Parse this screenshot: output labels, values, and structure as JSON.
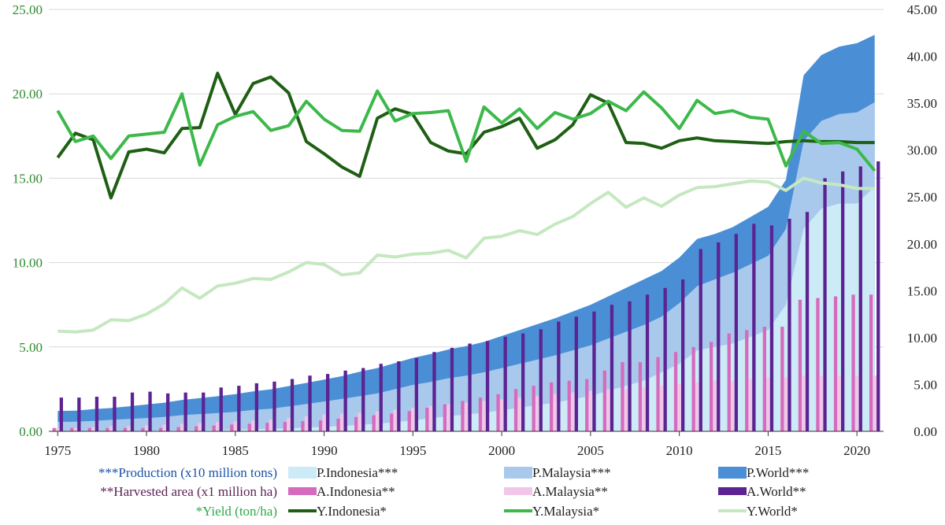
{
  "chart_data": {
    "type": "combo",
    "x": [
      1975,
      1976,
      1977,
      1978,
      1979,
      1980,
      1981,
      1982,
      1983,
      1984,
      1985,
      1986,
      1987,
      1988,
      1989,
      1990,
      1991,
      1992,
      1993,
      1994,
      1995,
      1996,
      1997,
      1998,
      1999,
      2000,
      2001,
      2002,
      2003,
      2004,
      2005,
      2006,
      2007,
      2008,
      2009,
      2010,
      2011,
      2012,
      2013,
      2014,
      2015,
      2016,
      2017,
      2018,
      2019,
      2020,
      2021
    ],
    "x_ticks": [
      "1975",
      "1980",
      "1985",
      "1990",
      "1995",
      "2000",
      "2005",
      "2010",
      "2015",
      "2020"
    ],
    "y_left_ticks": [
      "0.00",
      "5.00",
      "10.00",
      "15.00",
      "20.00",
      "25.00"
    ],
    "y_right_ticks": [
      "0.00",
      "5.00",
      "10.00",
      "15.00",
      "20.00",
      "25.00",
      "30.00",
      "35.00",
      "40.00",
      "45.00"
    ],
    "y_left_range": [
      0,
      25
    ],
    "y_right_range": [
      0,
      45
    ],
    "grid": "horizontal",
    "legend_position": "bottom",
    "area_series": [
      {
        "name": "P.Indonesia***",
        "color": "#cdeaf7",
        "values": [
          0.01,
          0.02,
          0.02,
          0.03,
          0.03,
          0.04,
          0.05,
          0.06,
          0.07,
          0.08,
          0.1,
          0.12,
          0.14,
          0.18,
          0.22,
          0.27,
          0.32,
          0.38,
          0.45,
          0.55,
          0.65,
          0.78,
          0.9,
          1.0,
          1.1,
          1.25,
          1.4,
          1.55,
          1.7,
          1.9,
          2.1,
          2.4,
          2.7,
          3.0,
          3.5,
          4.0,
          4.8,
          5.0,
          5.2,
          5.6,
          6.0,
          7.5,
          12.0,
          13.2,
          13.5,
          13.5,
          14.5
        ]
      },
      {
        "name": "P.Malaysia***",
        "color": "#a9c9ec",
        "values": [
          0.55,
          0.55,
          0.6,
          0.65,
          0.7,
          0.75,
          0.8,
          0.9,
          0.95,
          1.0,
          1.05,
          1.15,
          1.2,
          1.3,
          1.4,
          1.5,
          1.6,
          1.7,
          1.8,
          1.95,
          2.1,
          2.15,
          2.25,
          2.3,
          2.4,
          2.5,
          2.6,
          2.7,
          2.8,
          2.9,
          3.0,
          3.1,
          3.2,
          3.3,
          3.3,
          3.6,
          3.8,
          4.0,
          4.2,
          4.3,
          4.4,
          4.5,
          5.2,
          5.2,
          5.3,
          5.4,
          5.0
        ]
      },
      {
        "name": "P.World***",
        "color": "#4a8fd6",
        "values": [
          0.65,
          0.65,
          0.7,
          0.7,
          0.75,
          0.8,
          0.85,
          0.9,
          0.95,
          1.0,
          1.05,
          1.1,
          1.15,
          1.2,
          1.25,
          1.3,
          1.35,
          1.45,
          1.5,
          1.55,
          1.6,
          1.65,
          1.7,
          1.75,
          1.8,
          1.9,
          2.0,
          2.1,
          2.2,
          2.3,
          2.4,
          2.5,
          2.6,
          2.7,
          2.7,
          2.7,
          2.8,
          2.7,
          2.7,
          2.8,
          2.9,
          2.9,
          3.9,
          3.9,
          4.0,
          4.1,
          4.0
        ]
      }
    ],
    "bar_series": [
      {
        "name": "A.Indonesia**",
        "color": "#d66bbd",
        "values": [
          0.2,
          0.2,
          0.2,
          0.2,
          0.2,
          0.2,
          0.2,
          0.25,
          0.3,
          0.35,
          0.4,
          0.45,
          0.5,
          0.55,
          0.6,
          0.65,
          0.75,
          0.85,
          0.95,
          1.05,
          1.2,
          1.4,
          1.6,
          1.8,
          2.0,
          2.2,
          2.5,
          2.7,
          2.9,
          3.0,
          3.1,
          3.6,
          4.1,
          4.1,
          4.4,
          4.7,
          5.0,
          5.3,
          5.8,
          6.0,
          6.2,
          6.2,
          7.8,
          7.9,
          8.0,
          8.1,
          8.1
        ]
      },
      {
        "name": "A.Malaysia**",
        "color": "#f2c6e8",
        "values": [
          0.2,
          0.2,
          0.25,
          0.3,
          0.3,
          0.35,
          0.4,
          0.45,
          0.5,
          0.55,
          0.6,
          0.65,
          0.7,
          0.8,
          0.9,
          1.0,
          1.05,
          1.1,
          1.2,
          1.3,
          1.4,
          1.5,
          1.6,
          1.7,
          1.8,
          1.9,
          2.0,
          2.1,
          2.2,
          2.3,
          2.4,
          2.5,
          2.5,
          2.6,
          2.7,
          2.8,
          2.9,
          3.0,
          3.0,
          3.1,
          3.2,
          3.2,
          3.3,
          3.3,
          3.3,
          3.3,
          3.3
        ]
      },
      {
        "name": "A.World**",
        "color": "#5c2392",
        "values": [
          2.0,
          2.0,
          2.05,
          2.05,
          2.3,
          2.35,
          2.25,
          2.3,
          2.3,
          2.6,
          2.7,
          2.85,
          2.95,
          3.1,
          3.3,
          3.4,
          3.6,
          3.75,
          4.0,
          4.15,
          4.35,
          4.7,
          4.95,
          5.2,
          5.35,
          5.6,
          5.8,
          6.05,
          6.5,
          6.8,
          7.1,
          7.5,
          7.7,
          8.1,
          8.5,
          9.0,
          10.8,
          11.2,
          11.7,
          12.3,
          12.2,
          12.6,
          13.0,
          15.0,
          15.4,
          15.7,
          16.0
        ]
      }
    ],
    "line_series": [
      {
        "name": "Y.Indonesia*",
        "color": "#1f5f14",
        "values": [
          29.2,
          31.8,
          31.1,
          24.9,
          29.8,
          30.1,
          29.7,
          32.3,
          32.4,
          38.2,
          33.8,
          37.1,
          37.8,
          36.1,
          30.9,
          29.6,
          28.2,
          27.2,
          33.4,
          34.4,
          33.8,
          30.8,
          29.9,
          29.6,
          31.9,
          32.5,
          33.4,
          30.2,
          31.1,
          32.7,
          35.9,
          35.0,
          30.8,
          30.7,
          30.2,
          31.0,
          31.3,
          31.0,
          30.9,
          30.8,
          30.7,
          30.9,
          31.0,
          30.9,
          30.9,
          30.8,
          30.8
        ]
      },
      {
        "name": "Y.Malaysia*",
        "color": "#3cb94a",
        "values": [
          34.2,
          30.9,
          31.5,
          29.1,
          31.5,
          31.7,
          31.9,
          36.0,
          28.4,
          32.7,
          33.6,
          34.1,
          32.1,
          32.6,
          35.2,
          33.3,
          32.1,
          32.0,
          36.3,
          33.1,
          33.9,
          34.0,
          34.2,
          28.8,
          34.6,
          32.9,
          34.4,
          32.3,
          34.0,
          33.3,
          33.9,
          35.2,
          34.2,
          36.2,
          34.5,
          32.3,
          35.3,
          33.9,
          34.2,
          33.5,
          33.3,
          28.3,
          32.0,
          30.7,
          30.8,
          30.1,
          27.8
        ]
      },
      {
        "name": "Y.World*",
        "color": "#c5e8c0",
        "values": [
          10.7,
          10.6,
          10.8,
          11.9,
          11.8,
          12.5,
          13.6,
          15.3,
          14.2,
          15.5,
          15.8,
          16.3,
          16.2,
          17.0,
          18.0,
          17.8,
          16.7,
          16.9,
          18.8,
          18.6,
          18.9,
          19.0,
          19.3,
          18.5,
          20.6,
          20.8,
          21.4,
          21.0,
          22.1,
          22.9,
          24.3,
          25.5,
          23.9,
          24.9,
          24.0,
          25.2,
          26.0,
          26.1,
          26.4,
          26.7,
          26.6,
          25.7,
          27.0,
          26.5,
          26.3,
          25.9,
          25.9
        ]
      }
    ],
    "axis_notes": [
      {
        "text": "***Production (x10 million tons)",
        "color": "#1a53a8"
      },
      {
        "text": "**Harvested area (x1 million ha)",
        "color": "#5a1f56"
      },
      {
        "text": "*Yield (ton/ha)",
        "color": "#2fa84a"
      }
    ],
    "left_axis_color": "#2e8b2e",
    "right_axis_color": "#222222"
  }
}
